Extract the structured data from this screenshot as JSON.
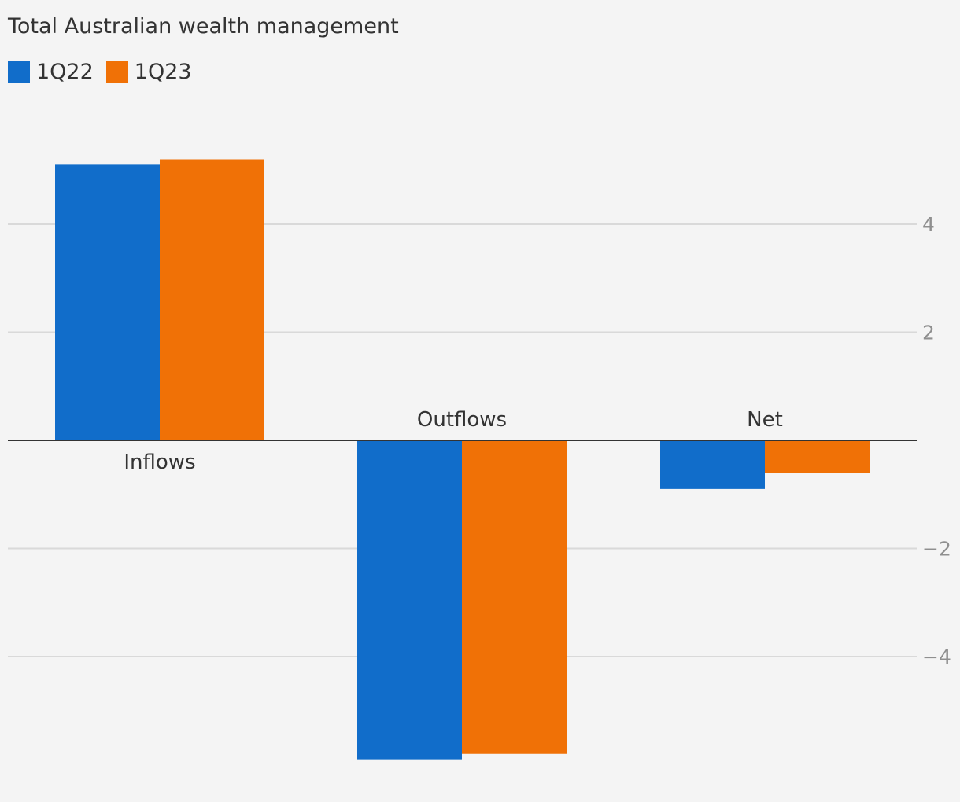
{
  "chart_data": {
    "type": "bar",
    "title": "Total Australian wealth management",
    "categories": [
      "Inflows",
      "Outflows",
      "Net"
    ],
    "series": [
      {
        "name": "1Q22",
        "color": "#116dca",
        "values": [
          5.1,
          -5.9,
          -0.9
        ]
      },
      {
        "name": "1Q23",
        "color": "#f07106",
        "values": [
          5.2,
          -5.8,
          -0.6
        ]
      }
    ],
    "y_ticks": [
      {
        "value": 4,
        "label": "4"
      },
      {
        "value": 2,
        "label": "2"
      },
      {
        "value": -2,
        "label": "−2"
      },
      {
        "value": -4,
        "label": "−4"
      }
    ],
    "ylim": [
      -6.0,
      6.0
    ],
    "grid": true,
    "y_axis_side": "right",
    "legend_placement": "top-left"
  }
}
